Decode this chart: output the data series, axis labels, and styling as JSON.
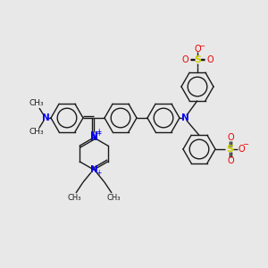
{
  "background_color": "#e8e8e8",
  "bond_color": "#1a1a1a",
  "n_color": "#0000ee",
  "s_color": "#cccc00",
  "o_color": "#ee0000",
  "figsize": [
    3.0,
    3.0
  ],
  "dpi": 100,
  "xlim": [
    0,
    300
  ],
  "ylim": [
    0,
    300
  ]
}
